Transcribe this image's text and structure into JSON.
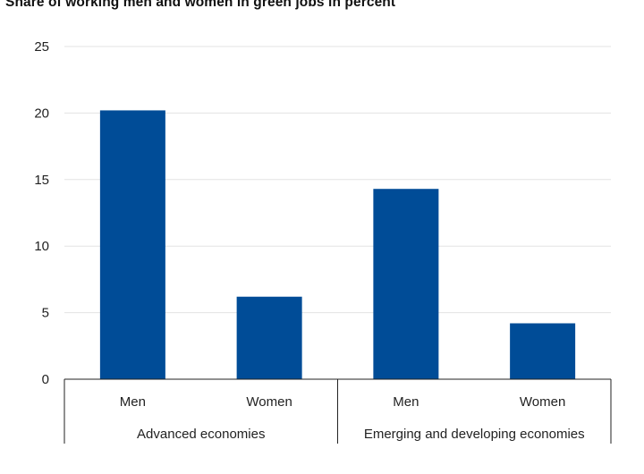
{
  "chart_data": {
    "type": "bar",
    "title": "Share of working men and women in green jobs in percent",
    "groups": [
      {
        "name": "Advanced economies",
        "categories": [
          "Men",
          "Women"
        ],
        "values": [
          20.2,
          6.2
        ]
      },
      {
        "name": "Emerging and developing economies",
        "categories": [
          "Men",
          "Women"
        ],
        "values": [
          14.3,
          4.2
        ]
      }
    ],
    "ylim": [
      0,
      25
    ],
    "yticks": [
      0,
      5,
      10,
      15,
      20,
      25
    ],
    "grid": true,
    "colors": {
      "bar": "#004C97",
      "grid": "#e3e3e3",
      "axis": "#222222"
    }
  }
}
